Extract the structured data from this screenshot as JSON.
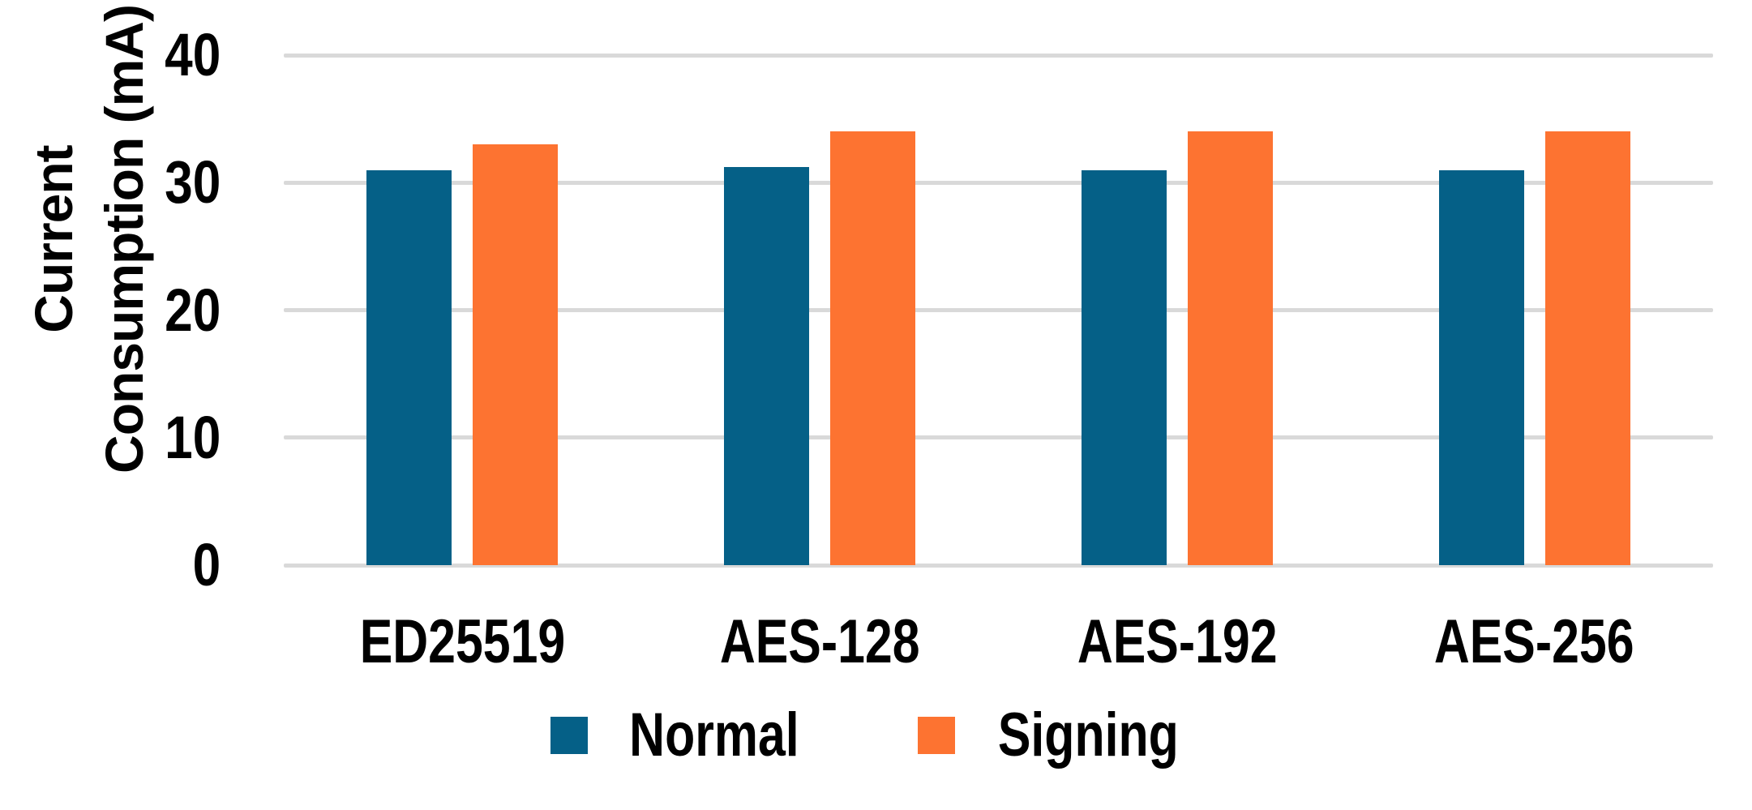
{
  "chart_data": {
    "type": "bar",
    "title": "",
    "categories": [
      "ED25519",
      "AES-128",
      "AES-192",
      "AES-256"
    ],
    "series": [
      {
        "name": "Normal",
        "color": "#056087",
        "values": [
          31,
          31.2,
          31,
          31
        ]
      },
      {
        "name": "Signing",
        "color": "#FD7331",
        "values": [
          33,
          34,
          34,
          34
        ]
      }
    ],
    "ylabel": "Current Consumption (mA)",
    "ylabel_line1": "Current",
    "ylabel_line2": "Consumption (mA)",
    "xlabel": "",
    "ylim": [
      0,
      40
    ],
    "yticks": [
      0,
      10,
      20,
      30,
      40
    ],
    "grid": "horizontal",
    "gridline_color": "#D9D9D9",
    "legend_position": "bottom-center",
    "text_color": "#000000",
    "background": "#FFFFFF"
  }
}
